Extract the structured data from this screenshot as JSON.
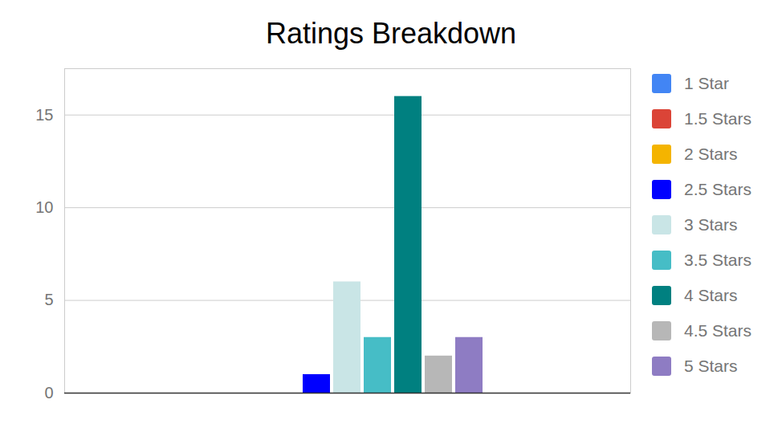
{
  "chart_data": {
    "type": "bar",
    "title": "Ratings Breakdown",
    "categories": [
      null
    ],
    "series": [
      {
        "name": "1 Star",
        "color": "#4285f4",
        "values": [
          0
        ]
      },
      {
        "name": "1.5 Stars",
        "color": "#db4437",
        "values": [
          0
        ]
      },
      {
        "name": "2 Stars",
        "color": "#f4b400",
        "values": [
          0
        ]
      },
      {
        "name": "2.5 Stars",
        "color": "#0000ff",
        "values": [
          1
        ]
      },
      {
        "name": "3 Stars",
        "color": "#c9e5e6",
        "values": [
          6
        ]
      },
      {
        "name": "3.5 Stars",
        "color": "#46bdc6",
        "values": [
          3
        ]
      },
      {
        "name": "4 Stars",
        "color": "#008080",
        "values": [
          16
        ]
      },
      {
        "name": "4.5 Stars",
        "color": "#b7b7b7",
        "values": [
          2
        ]
      },
      {
        "name": "5 Stars",
        "color": "#8e7cc3",
        "values": [
          3
        ]
      }
    ],
    "ylim": [
      0,
      17.5
    ],
    "yticks": [
      0,
      5,
      10,
      15
    ],
    "grid": true,
    "legend": "right",
    "tick_labels": "y"
  }
}
